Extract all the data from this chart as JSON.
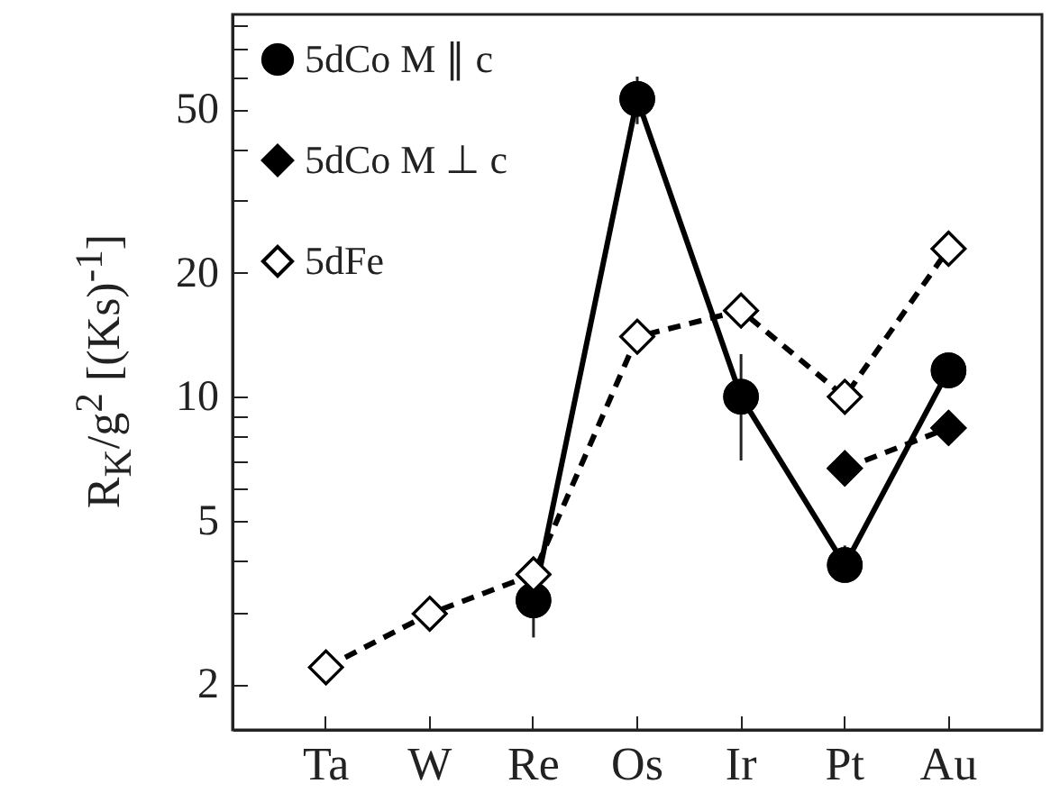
{
  "chart_data": {
    "type": "line",
    "ylabel": "R$_{K}$/g$^{2}$ [(Ks)$^{-1}$]",
    "log": true,
    "categories": [
      "Ta",
      "W",
      "Re",
      "Os",
      "Ir",
      "Pt",
      "Au"
    ],
    "ylim": [
      1.55,
      85
    ],
    "yticks": [
      2,
      {
        "value": 3,
        "label": null
      },
      {
        "value": 4,
        "label": null
      },
      5,
      {
        "value": 6,
        "label": null
      },
      {
        "value": 7,
        "label": null
      },
      {
        "value": 8,
        "label": null
      },
      {
        "value": 9,
        "label": null
      },
      10,
      20,
      {
        "value": 30,
        "label": null
      },
      {
        "value": 40,
        "label": null
      },
      50,
      {
        "value": 60,
        "label": null
      },
      {
        "value": 70,
        "label": null
      },
      {
        "value": 80,
        "label": null
      }
    ],
    "legend": "top left",
    "grid": false,
    "series": [
      {
        "name": "5dCo M ∥ c",
        "color": "#000000",
        "marker": "circle",
        "line_style": "solid",
        "values": [
          null,
          null,
          3.2,
          53,
          10,
          3.9,
          11.6
        ],
        "errors": [
          null,
          null,
          [
            2.6,
            3.8
          ],
          [
            46,
            60
          ],
          [
            7.0,
            12.7
          ],
          [
            3.55,
            4.35
          ],
          null
        ]
      },
      {
        "name": "5dCo M ⊥ c",
        "color": "#000000",
        "marker": "diamond",
        "line_style": "dashed",
        "values": [
          null,
          null,
          null,
          null,
          null,
          6.7,
          8.4
        ]
      },
      {
        "name": "5dFe",
        "color": "#000000",
        "marker": "diamond",
        "line_style": "dashed",
        "colors": [
          "#ffffff",
          "#ffffff",
          "#ffffff",
          "#ffffff",
          "#ffffff",
          "#ffffff",
          "#ffffff"
        ],
        "values": [
          2.2,
          2.97,
          3.7,
          14,
          16.2,
          10,
          22.9
        ]
      }
    ]
  }
}
